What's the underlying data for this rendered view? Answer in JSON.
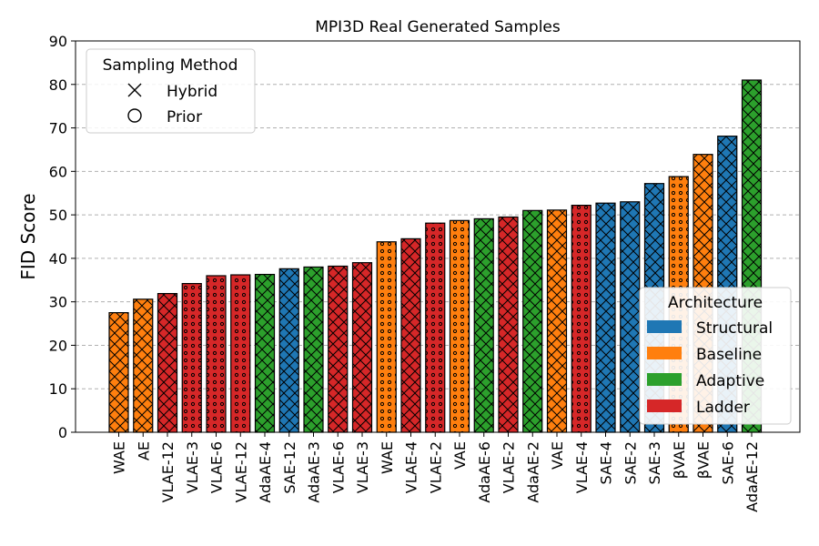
{
  "chart_data": {
    "type": "bar",
    "title": "MPI3D Real Generated Samples",
    "xlabel": "",
    "ylabel": "FID Score",
    "ylim": [
      0,
      90
    ],
    "yticks": [
      0,
      10,
      20,
      30,
      40,
      50,
      60,
      70,
      80,
      90
    ],
    "grid": "y-dashed",
    "categories": [
      "WAE",
      "AE",
      "VLAE-12",
      "VLAE-3",
      "VLAE-6",
      "VLAE-12",
      "AdaAE-4",
      "SAE-12",
      "AdaAE-3",
      "VLAE-6",
      "VLAE-3",
      "WAE",
      "VLAE-4",
      "VLAE-2",
      "VAE",
      "AdaAE-6",
      "VLAE-2",
      "AdaAE-2",
      "VAE",
      "VLAE-4",
      "SAE-4",
      "SAE-2",
      "SAE-3",
      "βVAE",
      "βVAE",
      "SAE-6",
      "AdaAE-12"
    ],
    "values": [
      27.5,
      30.6,
      31.9,
      34.2,
      36.0,
      36.2,
      36.3,
      37.6,
      38.0,
      38.2,
      39.0,
      43.8,
      44.5,
      48.1,
      48.7,
      49.1,
      49.5,
      51.0,
      51.1,
      52.2,
      52.7,
      53.0,
      57.2,
      58.8,
      63.9,
      68.1,
      81.0
    ],
    "architecture": [
      "Baseline",
      "Baseline",
      "Ladder",
      "Ladder",
      "Ladder",
      "Ladder",
      "Adaptive",
      "Structural",
      "Adaptive",
      "Ladder",
      "Ladder",
      "Baseline",
      "Ladder",
      "Ladder",
      "Baseline",
      "Adaptive",
      "Ladder",
      "Adaptive",
      "Baseline",
      "Ladder",
      "Structural",
      "Structural",
      "Structural",
      "Baseline",
      "Baseline",
      "Structural",
      "Adaptive"
    ],
    "sampling": [
      "Hybrid",
      "Hybrid",
      "Hybrid",
      "Prior",
      "Prior",
      "Prior",
      "Hybrid",
      "Hybrid",
      "Hybrid",
      "Hybrid",
      "Hybrid",
      "Prior",
      "Hybrid",
      "Prior",
      "Prior",
      "Hybrid",
      "Hybrid",
      "Hybrid",
      "Hybrid",
      "Prior",
      "Hybrid",
      "Hybrid",
      "Hybrid",
      "Prior",
      "Hybrid",
      "Hybrid",
      "Hybrid"
    ],
    "colors": {
      "Structural": "#1f77b4",
      "Baseline": "#ff7f0e",
      "Adaptive": "#2ca02c",
      "Ladder": "#d62728"
    },
    "legends": [
      {
        "title": "Sampling Method",
        "placement": "top-left",
        "entries": [
          {
            "label": "Hybrid",
            "marker": "x"
          },
          {
            "label": "Prior",
            "marker": "o"
          }
        ]
      },
      {
        "title": "Architecture",
        "placement": "bottom-right",
        "entries": [
          {
            "label": "Structural",
            "color": "#1f77b4"
          },
          {
            "label": "Baseline",
            "color": "#ff7f0e"
          },
          {
            "label": "Adaptive",
            "color": "#2ca02c"
          },
          {
            "label": "Ladder",
            "color": "#d62728"
          }
        ]
      }
    ]
  }
}
